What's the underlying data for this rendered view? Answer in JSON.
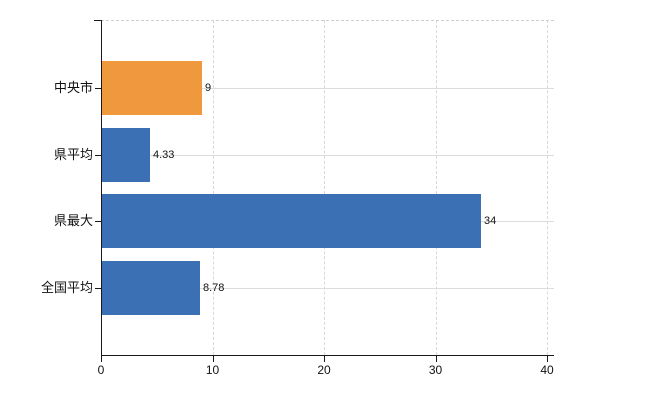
{
  "chart_data": {
    "type": "bar",
    "orientation": "horizontal",
    "title": "",
    "xlabel": "",
    "ylabel": "",
    "categories": [
      "中央市",
      "県平均",
      "県最大",
      "全国平均"
    ],
    "values": [
      9,
      4.33,
      34,
      8.78
    ],
    "value_labels": [
      "9",
      "4.33",
      "34",
      "8.78"
    ],
    "bar_colors": [
      "#F0983E",
      "#3C70B4",
      "#3C70B4",
      "#3C70B4"
    ],
    "x_ticks": [
      0,
      10,
      20,
      30,
      40
    ],
    "x_tick_labels": [
      "0",
      "10",
      "20",
      "30",
      "40"
    ],
    "xlim": [
      0,
      40
    ],
    "grid": true,
    "legend_position": "none"
  },
  "colors": {
    "background": "#ffffff",
    "axis": "#1a1a1a",
    "horizontal_gridline": "#d9ded9",
    "vertical_gridline": "#d8d8d8",
    "top_border": "#cfcfcf",
    "label_text": "#111111",
    "bar_orange": "#F0983E",
    "bar_blue": "#3C70B4"
  }
}
